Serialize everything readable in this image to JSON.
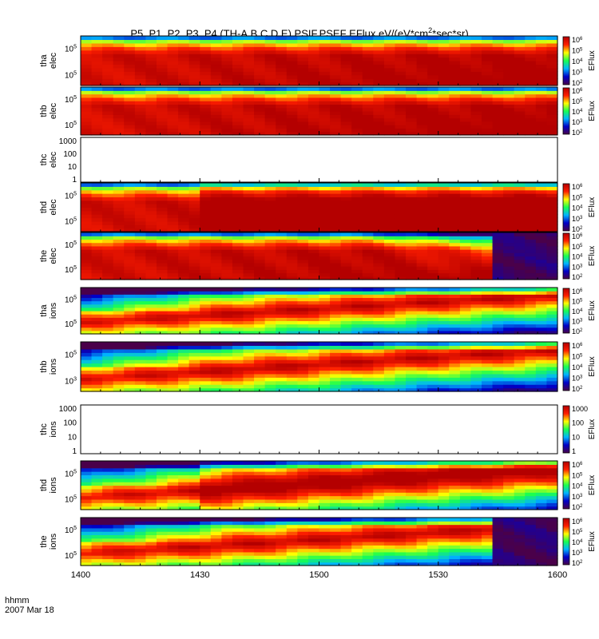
{
  "title_prefix": "P5, P1, P2, P3, P4 (TH-A,B,C,D,E) PSIF,PSEF EFlux eV/(eV*cm",
  "title_sup": "2",
  "title_suffix": "*sec*sr)",
  "footer": {
    "line1": "hhmm",
    "line2": "2007 Mar 18"
  },
  "chart_data": {
    "type": "heatmap",
    "title": "P5, P1, P2, P3, P4 (TH-A,B,C,D,E) PSIF,PSEF EFlux eV/(eV*cm2*sec*sr)",
    "x_tick_labels": [
      "1400",
      "1430",
      "1500",
      "1530",
      "1600"
    ],
    "xlim": [
      "14:00",
      "16:00"
    ],
    "x_unit": "hhmm",
    "x_date": "2007 Mar 18",
    "colorbar_label": "EFlux",
    "colormap": [
      "#4a004a",
      "#0000c8",
      "#00b4ff",
      "#19ff50",
      "#ffff00",
      "#ff1e00",
      "#b40000"
    ],
    "panels": [
      {
        "probe": "tha",
        "species": "elec",
        "has_data": true,
        "log_y": true,
        "y_ticks": [
          {
            "b": "10",
            "e": "5"
          },
          {
            "b": "10",
            "e": "5"
          }
        ],
        "cbar": {
          "b": "10",
          "e": [
            "2",
            "3",
            "4",
            "5",
            "6"
          ]
        }
      },
      {
        "probe": "thb",
        "species": "elec",
        "has_data": true,
        "log_y": true,
        "y_ticks": [
          {
            "b": "10",
            "e": "5"
          },
          {
            "b": "10",
            "e": "5"
          }
        ],
        "cbar": {
          "b": "10",
          "e": [
            "2",
            "3",
            "4",
            "5",
            "6"
          ]
        }
      },
      {
        "probe": "thc",
        "species": "elec",
        "has_data": false,
        "log_y": true,
        "y_ticks_plain": [
          "1000",
          "100",
          "10",
          "1"
        ]
      },
      {
        "probe": "thd",
        "species": "elec",
        "has_data": true,
        "log_y": true,
        "y_ticks": [
          {
            "b": "10",
            "e": "5"
          },
          {
            "b": "10",
            "e": "5"
          }
        ],
        "cbar": {
          "b": "10",
          "e": [
            "2",
            "3",
            "4",
            "5",
            "6"
          ]
        }
      },
      {
        "probe": "the",
        "species": "elec",
        "has_data": true,
        "log_y": true,
        "y_ticks": [
          {
            "b": "10",
            "e": "5"
          },
          {
            "b": "10",
            "e": "5"
          }
        ],
        "cbar": {
          "b": "10",
          "e": [
            "2",
            "3",
            "4",
            "5",
            "6"
          ]
        }
      },
      {
        "probe": "tha",
        "species": "ions",
        "has_data": true,
        "log_y": true,
        "y_ticks": [
          {
            "b": "10",
            "e": "5"
          },
          {
            "b": "10",
            "e": "5"
          }
        ],
        "cbar": {
          "b": "10",
          "e": [
            "2",
            "3",
            "4",
            "5",
            "6"
          ]
        }
      },
      {
        "probe": "thb",
        "species": "ions",
        "has_data": true,
        "log_y": true,
        "y_ticks": [
          {
            "b": "10",
            "e": "5"
          },
          {
            "b": "10",
            "e": "3"
          }
        ],
        "cbar": {
          "b": "10",
          "e": [
            "2",
            "3",
            "4",
            "5",
            "6"
          ]
        }
      },
      {
        "probe": "thc",
        "species": "ions",
        "has_data": false,
        "log_y": true,
        "y_ticks_plain": [
          "1000",
          "100",
          "10",
          "1"
        ],
        "cbar_plain": [
          "1000",
          "100",
          "10",
          "1"
        ]
      },
      {
        "probe": "thd",
        "species": "ions",
        "has_data": true,
        "log_y": true,
        "y_ticks": [
          {
            "b": "10",
            "e": "5"
          },
          {
            "b": "10",
            "e": "5"
          }
        ],
        "cbar": {
          "b": "10",
          "e": [
            "2",
            "3",
            "4",
            "5",
            "6"
          ]
        }
      },
      {
        "probe": "the",
        "species": "ions",
        "has_data": true,
        "log_y": true,
        "y_ticks": [
          {
            "b": "10",
            "e": "5"
          },
          {
            "b": "10",
            "e": "5"
          }
        ],
        "cbar": {
          "b": "10",
          "e": [
            "2",
            "3",
            "4",
            "5",
            "6"
          ]
        }
      }
    ]
  }
}
